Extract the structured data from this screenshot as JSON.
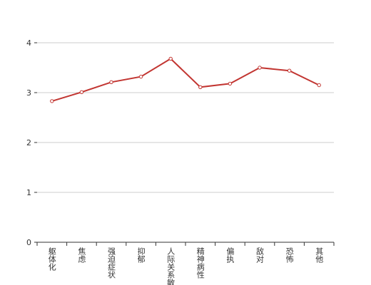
{
  "chart_data": {
    "type": "line",
    "categories": [
      "躯体化",
      "焦虑",
      "强迫症状",
      "抑郁",
      "人际关系敏感",
      "精神病性",
      "偏执",
      "敌对",
      "恐怖",
      "其他"
    ],
    "values": [
      2.83,
      3.01,
      3.21,
      3.32,
      3.68,
      3.11,
      3.18,
      3.5,
      3.44,
      3.15
    ],
    "color": "#c23531",
    "ylim": [
      0,
      4
    ],
    "yticks": [
      0,
      1,
      2,
      3,
      4
    ],
    "grid": true
  }
}
